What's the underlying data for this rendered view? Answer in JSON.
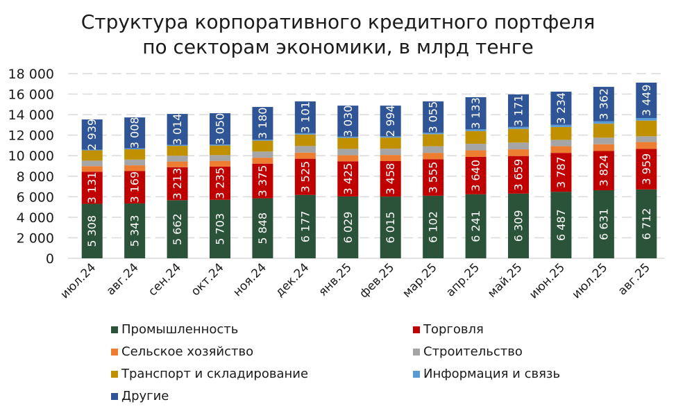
{
  "chart_data": {
    "type": "bar",
    "stacked": true,
    "title": "Структура корпоративного кредитного портфеля по секторам экономики, в млрд тенге",
    "title_lines": [
      "Структура корпоративного кредитного портфеля",
      "по секторам экономики, в млрд тенге"
    ],
    "xlabel": "",
    "ylabel": "",
    "ylim": [
      0,
      18000
    ],
    "yticks": [
      0,
      2000,
      4000,
      6000,
      8000,
      10000,
      12000,
      14000,
      16000,
      18000
    ],
    "ytick_labels": [
      "0",
      "2 000",
      "4 000",
      "6 000",
      "8 000",
      "10 000",
      "12 000",
      "14 000",
      "16 000",
      "18 000"
    ],
    "grid": true,
    "legend_position": "bottom",
    "categories": [
      "июл.24",
      "авг.24",
      "сен.24",
      "окт.24",
      "ноя.24",
      "дек.24",
      "янв.25",
      "фев.25",
      "мар.25",
      "апр.25",
      "май.25",
      "июн.25",
      "июл.25",
      "авг.25"
    ],
    "series": [
      {
        "name": "Промышленность",
        "color": "#2b5339",
        "labeled": true,
        "values": [
          5308,
          5343,
          5662,
          5703,
          5848,
          6177,
          6029,
          6015,
          6102,
          6241,
          6309,
          6487,
          6631,
          6712
        ]
      },
      {
        "name": "Торговля",
        "color": "#c00000",
        "labeled": true,
        "values": [
          3131,
          3169,
          3213,
          3235,
          3375,
          3525,
          3425,
          3458,
          3555,
          3640,
          3659,
          3787,
          3824,
          3959
        ]
      },
      {
        "name": "Сельское хозяйство",
        "color": "#ed7d31",
        "labeled": false,
        "values": [
          540,
          550,
          560,
          560,
          580,
          600,
          590,
          600,
          620,
          640,
          650,
          650,
          660,
          660
        ]
      },
      {
        "name": "Строительство",
        "color": "#a5a5a5",
        "labeled": false,
        "values": [
          540,
          560,
          560,
          560,
          600,
          640,
          620,
          610,
          640,
          640,
          660,
          620,
          640,
          560
        ]
      },
      {
        "name": "Транспорт и складирование",
        "color": "#c09000",
        "labeled": false,
        "values": [
          1000,
          1000,
          960,
          930,
          1060,
          1120,
          1070,
          1080,
          1180,
          1240,
          1330,
          1250,
          1360,
          1530
        ]
      },
      {
        "name": "Информация и связь",
        "color": "#5b9bd5",
        "labeled": false,
        "values": [
          72,
          100,
          101,
          102,
          107,
          127,
          116,
          123,
          138,
          166,
          191,
          212,
          233,
          250
        ]
      },
      {
        "name": "Другие",
        "color": "#2f5597",
        "labeled": true,
        "values": [
          2939,
          3008,
          3014,
          3050,
          3180,
          3101,
          3030,
          2994,
          3055,
          3133,
          3171,
          3234,
          3362,
          3449
        ]
      }
    ],
    "data_labels": {
      "Промышленность": [
        "5 308",
        "5 343",
        "5 662",
        "5 703",
        "5 848",
        "6 177",
        "6 029",
        "6 015",
        "6 102",
        "6 241",
        "6 309",
        "6 487",
        "6 631",
        "6 712"
      ],
      "Торговля": [
        "3 131",
        "3 169",
        "3 213",
        "3 235",
        "3 375",
        "3 525",
        "3 425",
        "3 458",
        "3 555",
        "3 640",
        "3 659",
        "3 787",
        "3 824",
        "3 959"
      ],
      "Другие": [
        "2 939",
        "3 008",
        "3 014",
        "3 050",
        "3 180",
        "3 101",
        "3 030",
        "2 994",
        "3 055",
        "3 133",
        "3 171",
        "3 234",
        "3 362",
        "3 449"
      ]
    }
  },
  "legend": [
    {
      "label": "Промышленность",
      "color": "#2b5339"
    },
    {
      "label": "Торговля",
      "color": "#c00000"
    },
    {
      "label": "Сельское хозяйство",
      "color": "#ed7d31"
    },
    {
      "label": "Строительство",
      "color": "#a5a5a5"
    },
    {
      "label": "Транспорт и складирование",
      "color": "#c09000"
    },
    {
      "label": "Информация и связь",
      "color": "#5b9bd5"
    },
    {
      "label": "Другие",
      "color": "#2f5597"
    }
  ]
}
